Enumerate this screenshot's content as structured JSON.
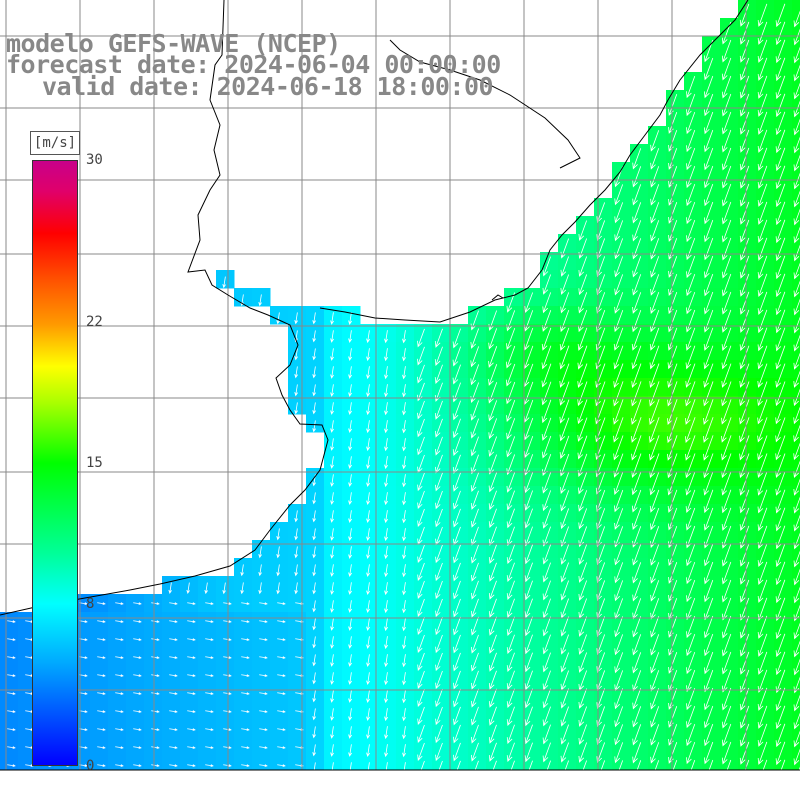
{
  "titles": {
    "line1": "modelo GEFS-WAVE (NCEP)",
    "line2": "forecast date: 2024-06-04 00:00:00",
    "line3": "valid date: 2024-06-18 18:00:00"
  },
  "colorbar": {
    "unit": "[m/s]",
    "min": 0,
    "max": 30,
    "ticks": [
      {
        "value": 30,
        "label": "30"
      },
      {
        "value": 22,
        "label": "22"
      },
      {
        "value": 15,
        "label": "15"
      },
      {
        "value": 8,
        "label": "8"
      },
      {
        "value": 0,
        "label": "0"
      }
    ]
  },
  "field": {
    "variable": "wind speed",
    "units": "m/s",
    "vector_direction": "mostly toward south-southwest offshore, toward east near coast",
    "max_value_region": "about 17 m/s, east-central offshore"
  },
  "colors": {
    "land": "#ffffff",
    "grid": "#888888",
    "coast": "#000000",
    "arrows": "#ffffff"
  }
}
